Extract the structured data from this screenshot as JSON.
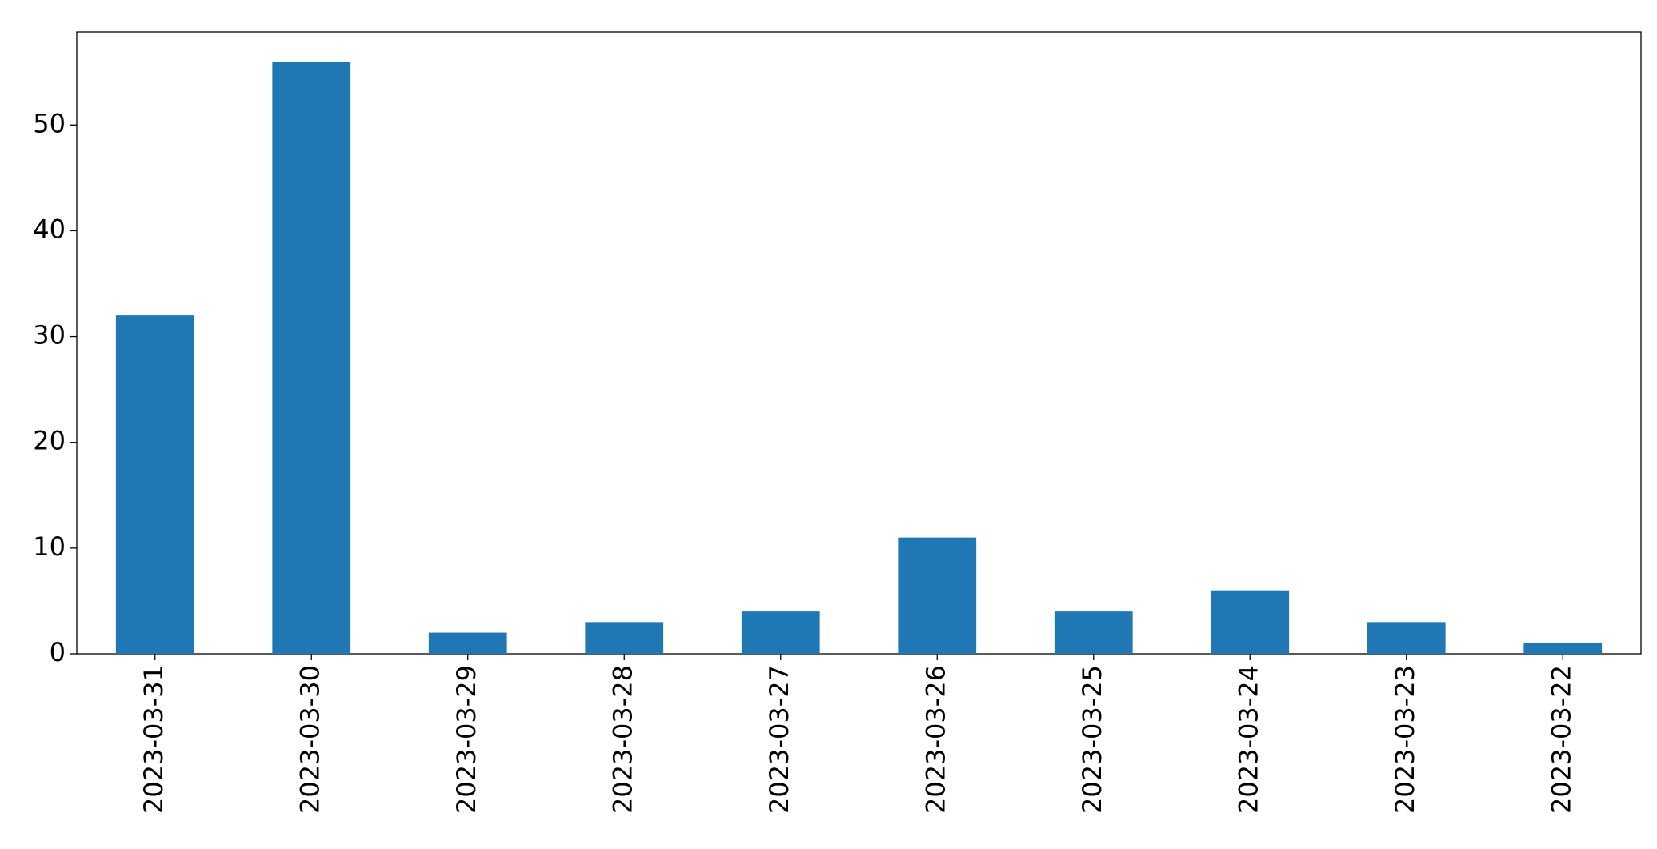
{
  "chart_data": {
    "type": "bar",
    "categories": [
      "2023-03-31",
      "2023-03-30",
      "2023-03-29",
      "2023-03-28",
      "2023-03-27",
      "2023-03-26",
      "2023-03-25",
      "2023-03-24",
      "2023-03-23",
      "2023-03-22"
    ],
    "values": [
      32,
      56,
      2,
      3,
      4,
      11,
      4,
      6,
      3,
      1
    ],
    "color": "#1f77b4",
    "ylim": [
      0,
      58.8
    ],
    "yticks": [
      0,
      10,
      20,
      30,
      40,
      50
    ],
    "grid": false
  }
}
